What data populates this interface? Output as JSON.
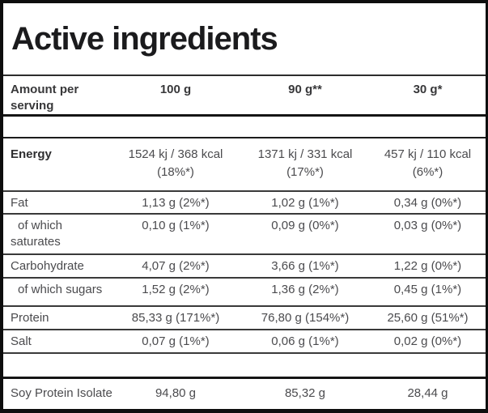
{
  "title": "Active ingredients",
  "table": {
    "header": {
      "label": "Amount per serving",
      "columns": [
        "100 g",
        "90 g**",
        "30 g*"
      ]
    },
    "rows": [
      {
        "label": "Energy",
        "values": [
          {
            "line1": "1524 kj / 368 kcal",
            "line2": "(18%*)"
          },
          {
            "line1": "1371 kj / 331 kcal",
            "line2": "(17%*)"
          },
          {
            "line1": "457 kj / 110 kcal",
            "line2": "(6%*)"
          }
        ]
      },
      {
        "label": "Fat",
        "values": [
          "1,13 g (2%*)",
          "1,02 g (1%*)",
          "0,34 g (0%*)"
        ]
      },
      {
        "label": "of which saturates",
        "values": [
          "0,10 g (1%*)",
          "0,09 g (0%*)",
          "0,03 g (0%*)"
        ]
      },
      {
        "label": "Carbohydrate",
        "values": [
          "4,07 g (2%*)",
          "3,66 g (1%*)",
          "1,22 g (0%*)"
        ]
      },
      {
        "label": "of which sugars",
        "values": [
          "1,52 g (2%*)",
          "1,36 g (2%*)",
          "0,45 g (1%*)"
        ]
      },
      {
        "label": "Protein",
        "values": [
          "85,33 g (171%*)",
          "76,80 g (154%*)",
          "25,60 g (51%*)"
        ]
      },
      {
        "label": "Salt",
        "values": [
          "0,07 g (1%*)",
          "0,06 g (1%*)",
          "0,02 g (0%*)"
        ]
      },
      {
        "label": "Soy Protein Isolate",
        "values": [
          "94,80 g",
          "85,32 g",
          "28,44 g"
        ]
      }
    ]
  },
  "colors": {
    "outer_border": "#0e0e0e",
    "row_separator": "#3a3a3a",
    "heading_text": "#1b1b1d",
    "body_text": "#4b4b4e"
  }
}
